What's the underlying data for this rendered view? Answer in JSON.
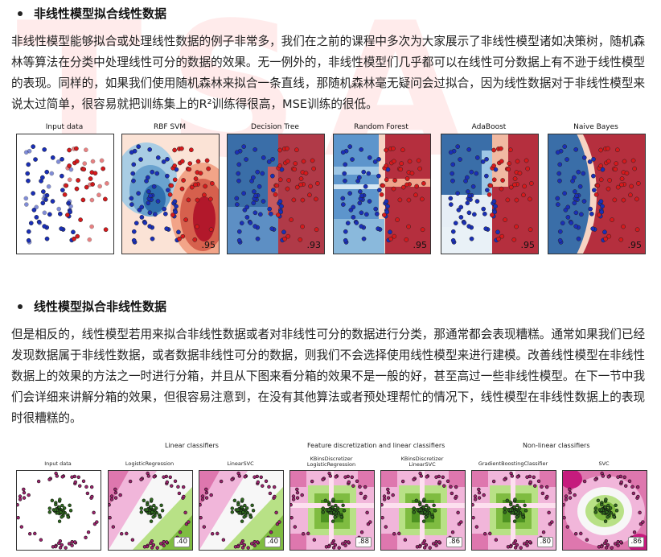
{
  "section1": {
    "title": "非线性模型拟合线性数据",
    "paragraph": "非线性模型能够拟合或处理线性数据的例子非常多，我们在之前的课程中多次为大家展示了非线性模型诸如决策树，随机森林等算法在分类中处理线性可分的数据的效果。无一例外的，非线性模型们几乎都可以在线性可分数据上有不逊于线性模型的表现。同样的，如果我们使用随机森林来拟合一条直线，那随机森林毫无疑问会过拟合，因为线性数据对于非线性模型来说太过简单，很容易就把训练集上的R²训练得很高，MSE训练的很低。",
    "figure": {
      "panels": [
        {
          "title": "Input data",
          "score": ""
        },
        {
          "title": "RBF SVM",
          "score": ".95"
        },
        {
          "title": "Decision Tree",
          "score": ".93"
        },
        {
          "title": "Random Forest",
          "score": ".95"
        },
        {
          "title": "AdaBoost",
          "score": ".95"
        },
        {
          "title": "Naive Bayes",
          "score": ".95"
        }
      ]
    }
  },
  "section2": {
    "title": "线性模型拟合非线性数据",
    "paragraph": "但是相反的，线性模型若用来拟合非线性数据或者对非线性可分的数据进行分类，那通常都会表现糟糕。通常如果我们已经发现数据属于非线性数据，或者数据非线性可分的数据，则我们不会选择使用线性模型来进行建模。改善线性模型在非线性数据上的效果的方法之一时进行分箱，并且从下图来看分箱的效果不是一般的好，甚至高过一些非线性模型。在下一节中我们会详细来讲解分箱的效果，但很容易注意到，在没有其他算法或者预处理帮忙的情况下，线性模型在非线性数据上的表现时很糟糕的。",
    "figure": {
      "groups": [
        "Linear classifiers",
        "Feature discretization and linear classifiers",
        "Non-linear classifiers"
      ],
      "panels": [
        {
          "title": "Input data",
          "score": ""
        },
        {
          "title": "LogisticRegression",
          "score": ".40"
        },
        {
          "title": "LinearSVC",
          "score": ".40"
        },
        {
          "title": "KBinsDiscretizer\nLogisticRegression",
          "score": ".88"
        },
        {
          "title": "KBinsDiscretizer\nLinearSVC",
          "score": ".86"
        },
        {
          "title": "GradientBoostingClassifier",
          "score": ".80"
        },
        {
          "title": "SVC",
          "score": ".86"
        }
      ]
    }
  },
  "colors": {
    "red": "#c0272d",
    "blue": "#1f3fa8",
    "pink": "#c51b7d",
    "green": "#4d9221"
  }
}
